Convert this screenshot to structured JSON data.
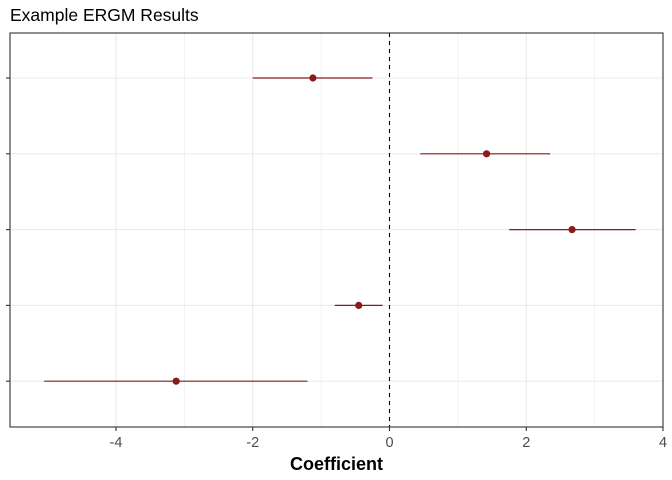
{
  "chart_data": {
    "type": "coefficient-plot",
    "title": "Example ERGM Results",
    "xlabel": "Coefficient",
    "ylabel": "",
    "xlim": [
      -5.55,
      4.0
    ],
    "xticks": [
      -4,
      -2,
      0,
      2,
      4
    ],
    "xtick_labels": [
      "-4",
      "-2",
      "0",
      "2",
      "4"
    ],
    "reference_line": 0,
    "grid": true,
    "legend": "none",
    "terms": [
      {
        "estimate": -1.12,
        "lower": -2.0,
        "upper": -0.25
      },
      {
        "estimate": 1.42,
        "lower": 0.45,
        "upper": 2.35
      },
      {
        "estimate": 2.67,
        "lower": 1.75,
        "upper": 3.6
      },
      {
        "estimate": -0.45,
        "lower": -0.8,
        "upper": -0.1
      },
      {
        "estimate": -3.12,
        "lower": -5.05,
        "upper": -1.2
      }
    ]
  },
  "colors": {
    "point": "#8b1a1a",
    "interval": "#8b1a1a",
    "grid": "#ebebeb",
    "axis_text": "#4d4d4d",
    "panel_border": "#333333"
  }
}
